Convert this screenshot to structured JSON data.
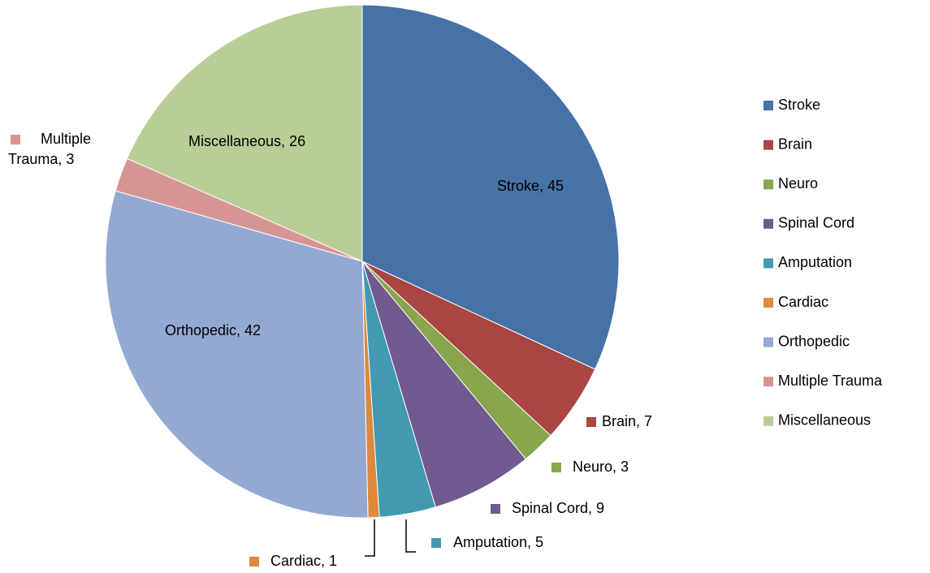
{
  "chart_data": {
    "type": "pie",
    "categories": [
      "Stroke",
      "Brain",
      "Neuro",
      "Spinal Cord",
      "Amputation",
      "Cardiac",
      "Orthopedic",
      "Multiple Trauma",
      "Miscellaneous"
    ],
    "values": [
      45,
      7,
      3,
      9,
      5,
      1,
      42,
      3,
      26
    ],
    "value_labels": [
      "Stroke, 45",
      "Brain, 7",
      "Neuro, 3",
      "Spinal Cord, 9",
      "Amputation, 5",
      "Cardiac, 1",
      "Orthopedic, 42",
      "Multiple Trauma, 3",
      "Miscellaneous, 26"
    ],
    "colors": [
      "#4672a8",
      "#a94643",
      "#8aa64d",
      "#715a8f",
      "#4299b0",
      "#db8a3e",
      "#94a9d1",
      "#d69593",
      "#b9cd96"
    ],
    "legend": "right"
  }
}
